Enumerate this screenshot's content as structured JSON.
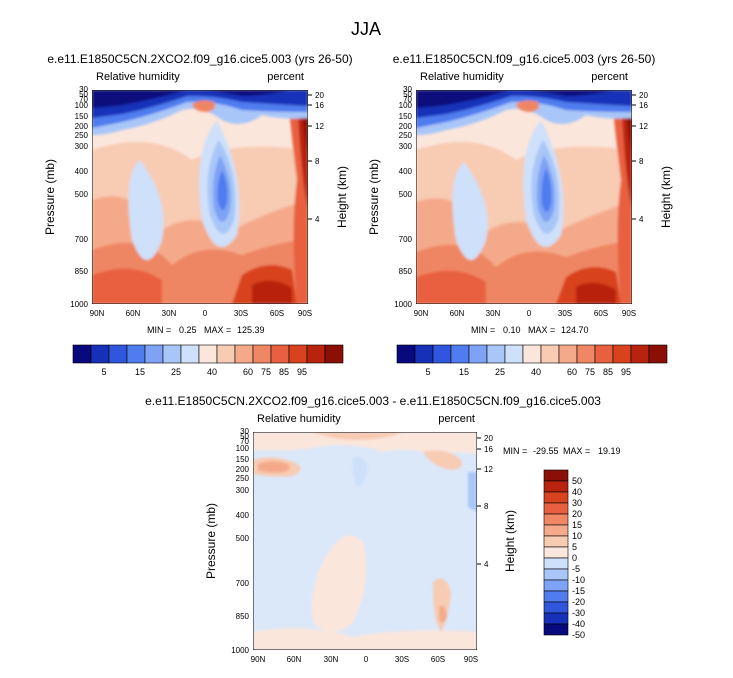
{
  "figure_title": "JJA",
  "chart_data": [
    {
      "type": "heatmap",
      "title": "e.e11.E1850C5CN.2XCO2.f09_g16.cice5.003 (yrs 26-50)",
      "left_label": "Relative humidity",
      "right_label": "percent",
      "ylabel": "Pressure (mb)",
      "ylabel_right": "Height (km)",
      "x_ticks": [
        "90N",
        "60N",
        "30N",
        "0",
        "30S",
        "60S",
        "90S"
      ],
      "y_ticks": [
        "30",
        "50",
        "70",
        "100",
        "150",
        "200",
        "250",
        "300",
        "400",
        "500",
        "700",
        "850",
        "1000"
      ],
      "height_ticks": [
        "20",
        "16",
        "12",
        "8",
        "4"
      ],
      "stats": {
        "min_label": "MIN =",
        "min": "0.25",
        "max_label": "MAX =",
        "max": "125.39"
      }
    },
    {
      "type": "heatmap",
      "title": "e.e11.E1850C5CN.f09_g16.cice5.003 (yrs 26-50)",
      "left_label": "Relative humidity",
      "right_label": "percent",
      "ylabel": "Pressure (mb)",
      "ylabel_right": "Height (km)",
      "x_ticks": [
        "90N",
        "60N",
        "30N",
        "0",
        "30S",
        "60S",
        "90S"
      ],
      "y_ticks": [
        "30",
        "50",
        "70",
        "100",
        "150",
        "200",
        "250",
        "300",
        "400",
        "500",
        "700",
        "850",
        "1000"
      ],
      "height_ticks": [
        "20",
        "16",
        "12",
        "8",
        "4"
      ],
      "stats": {
        "min_label": "MIN =",
        "min": "0.10",
        "max_label": "MAX =",
        "max": "124.70"
      }
    },
    {
      "type": "heatmap",
      "title": "e.e11.E1850C5CN.2XCO2.f09_g16.cice5.003 - e.e11.E1850C5CN.f09_g16.cice5.003",
      "left_label": "Relative humidity",
      "right_label": "percent",
      "ylabel": "Pressure (mb)",
      "ylabel_right": "Height (km)",
      "x_ticks": [
        "90N",
        "60N",
        "30N",
        "0",
        "30S",
        "60S",
        "90S"
      ],
      "y_ticks": [
        "30",
        "50",
        "70",
        "100",
        "150",
        "200",
        "250",
        "300",
        "400",
        "500",
        "700",
        "850",
        "1000"
      ],
      "height_ticks": [
        "20",
        "16",
        "12",
        "8",
        "4"
      ],
      "stats": {
        "min_label": "MIN =",
        "min": "-29.55",
        "max_label": "MAX =",
        "max": "19.19"
      }
    }
  ],
  "colorbar_abs": {
    "labels": [
      "5",
      "15",
      "25",
      "40",
      "60",
      "75",
      "85",
      "95"
    ],
    "colors": [
      "#08097c",
      "#1730b8",
      "#2f56dc",
      "#4f7cee",
      "#7ea3f5",
      "#a8c6f8",
      "#cfe0fa",
      "#fbe6dc",
      "#f8cbb3",
      "#f4aa8a",
      "#ef8664",
      "#e8603f",
      "#d8421f",
      "#b8230e",
      "#8b0f06"
    ]
  },
  "colorbar_diff": {
    "labels": [
      "50",
      "40",
      "30",
      "20",
      "15",
      "10",
      "5",
      "0",
      "-5",
      "-10",
      "-15",
      "-20",
      "-30",
      "-40",
      "-50"
    ],
    "colors": [
      "#8b0f06",
      "#b8230e",
      "#d8421f",
      "#e8603f",
      "#ef8664",
      "#f4aa8a",
      "#f8cbb3",
      "#fbe6dc",
      "#cfe0fa",
      "#a8c6f8",
      "#7ea3f5",
      "#4f7cee",
      "#2f56dc",
      "#1730b8",
      "#08097c"
    ]
  }
}
